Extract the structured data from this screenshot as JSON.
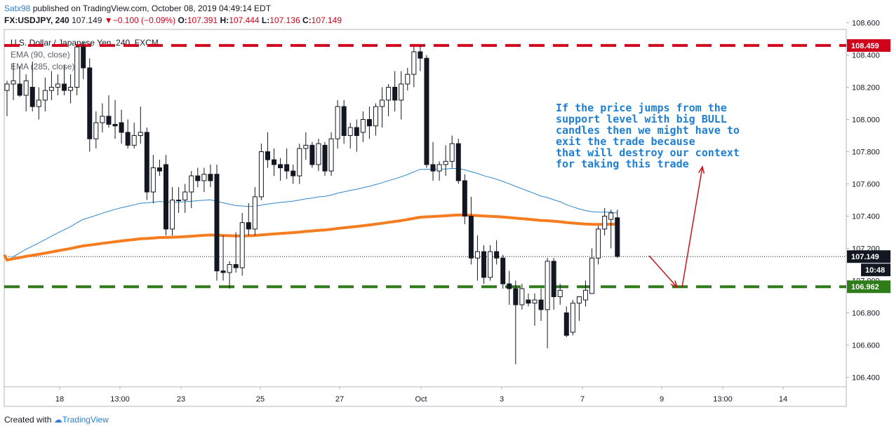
{
  "header": {
    "author": "Satx98",
    "published_text": "published on TradingView.com, October 08, 2019 04:49:14 EDT",
    "symbol": "FX:USDJPY, 240",
    "last": "107.149",
    "change_arrow": "▼",
    "change": "−0.100 (−0.09%)",
    "o_label": "O:",
    "o_value": "107.391",
    "h_label": "H:",
    "h_value": "107.444",
    "l_label": "L:",
    "l_value": "107.136",
    "c_label": "C:",
    "c_value": "107.149"
  },
  "footer": {
    "created_with": "Created with",
    "brand": "TradingView"
  },
  "colors": {
    "bull_fill": "#ffffff",
    "bear_fill": "#131722",
    "candle_line": "#131722",
    "ema90": "#2e86c8",
    "ema285": "#f57c1f",
    "resistance": "#d0021b",
    "support": "#2e7d1a",
    "annotation_text": "#1e7fd0",
    "arrow": "#c4161c"
  },
  "chart_data": {
    "type": "candlestick",
    "title": "U.S. Dollar / Japanese Yen, 240, FXCM",
    "indicators": [
      "EMA (90, close)",
      "EMA (285, close)"
    ],
    "ylim": [
      106.3,
      108.7
    ],
    "y_ticks": [
      "108.600",
      "108.400",
      "108.200",
      "108.000",
      "107.800",
      "107.600",
      "107.400",
      "107.200",
      "107.000",
      "106.800",
      "106.600",
      "106.400"
    ],
    "x_ticks": [
      "18",
      "13:00",
      "23",
      "25",
      "27",
      "Oct",
      "3",
      "7",
      "9",
      "13:00",
      "14"
    ],
    "horizontal_levels": [
      {
        "label": "108.459",
        "price": 108.459,
        "style": "dashed",
        "color": "#d0021b"
      },
      {
        "label": "106.962",
        "price": 106.962,
        "style": "dashed",
        "color": "#2e7d1a"
      }
    ],
    "last_price": {
      "label": "107.149",
      "price": 107.149,
      "countdown": "10:48"
    },
    "candles": [
      [
        108.18,
        108.24,
        108.02,
        108.22
      ],
      [
        108.22,
        108.35,
        108.12,
        108.24
      ],
      [
        108.22,
        108.33,
        108.14,
        108.15
      ],
      [
        108.15,
        108.28,
        108.05,
        108.24
      ],
      [
        108.2,
        108.36,
        108.05,
        108.08
      ],
      [
        108.08,
        108.2,
        108.0,
        108.12
      ],
      [
        108.12,
        108.26,
        108.05,
        108.18
      ],
      [
        108.18,
        108.3,
        108.12,
        108.2
      ],
      [
        108.2,
        108.28,
        108.15,
        108.22
      ],
      [
        108.22,
        108.34,
        108.15,
        108.18
      ],
      [
        108.18,
        108.28,
        108.1,
        108.2
      ],
      [
        108.2,
        108.46,
        108.15,
        108.45
      ],
      [
        108.45,
        108.48,
        108.25,
        108.32
      ],
      [
        108.32,
        108.38,
        107.8,
        107.88
      ],
      [
        107.88,
        108.05,
        107.82,
        107.98
      ],
      [
        107.98,
        108.1,
        107.92,
        108.02
      ],
      [
        108.02,
        108.15,
        107.95,
        107.97
      ],
      [
        107.97,
        108.12,
        107.88,
        107.96
      ],
      [
        107.98,
        108.06,
        107.85,
        107.92
      ],
      [
        107.92,
        108.0,
        107.82,
        107.84
      ],
      [
        107.84,
        107.98,
        107.82,
        107.9
      ],
      [
        107.9,
        108.08,
        107.85,
        107.92
      ],
      [
        107.92,
        107.95,
        107.5,
        107.55
      ],
      [
        107.55,
        107.78,
        107.48,
        107.7
      ],
      [
        107.7,
        107.75,
        107.65,
        107.68
      ],
      [
        107.72,
        107.78,
        107.28,
        107.32
      ],
      [
        107.32,
        107.58,
        107.28,
        107.5
      ],
      [
        107.5,
        107.58,
        107.42,
        107.5
      ],
      [
        107.5,
        107.6,
        107.42,
        107.55
      ],
      [
        107.55,
        107.68,
        107.45,
        107.65
      ],
      [
        107.65,
        107.7,
        107.58,
        107.62
      ],
      [
        107.62,
        107.7,
        107.55,
        107.66
      ],
      [
        107.66,
        107.72,
        107.58,
        107.62
      ],
      [
        107.66,
        107.72,
        107.0,
        107.06
      ],
      [
        107.06,
        107.28,
        107.0,
        107.05
      ],
      [
        107.05,
        107.12,
        106.95,
        107.1
      ],
      [
        107.1,
        107.3,
        107.05,
        107.08
      ],
      [
        107.08,
        107.42,
        107.03,
        107.36
      ],
      [
        107.36,
        107.48,
        107.28,
        107.32
      ],
      [
        107.32,
        107.58,
        107.28,
        107.52
      ],
      [
        107.52,
        107.85,
        107.5,
        107.8
      ],
      [
        107.8,
        107.92,
        107.7,
        107.75
      ],
      [
        107.75,
        107.82,
        107.65,
        107.72
      ],
      [
        107.72,
        107.76,
        107.62,
        107.7
      ],
      [
        107.72,
        107.82,
        107.63,
        107.68
      ],
      [
        107.68,
        107.72,
        107.6,
        107.65
      ],
      [
        107.65,
        107.85,
        107.6,
        107.82
      ],
      [
        107.82,
        107.92,
        107.75,
        107.84
      ],
      [
        107.84,
        107.86,
        107.7,
        107.72
      ],
      [
        107.72,
        107.88,
        107.68,
        107.85
      ],
      [
        107.84,
        107.86,
        107.65,
        107.68
      ],
      [
        107.68,
        107.92,
        107.65,
        107.88
      ],
      [
        107.88,
        108.12,
        107.82,
        108.08
      ],
      [
        108.08,
        108.12,
        107.85,
        107.9
      ],
      [
        107.9,
        107.98,
        107.82,
        107.95
      ],
      [
        107.95,
        108.0,
        107.8,
        107.9
      ],
      [
        107.92,
        108.05,
        107.86,
        108.0
      ],
      [
        108.0,
        108.08,
        107.88,
        107.96
      ],
      [
        107.96,
        108.1,
        107.9,
        108.08
      ],
      [
        108.08,
        108.2,
        107.95,
        108.12
      ],
      [
        108.12,
        108.22,
        108.02,
        108.2
      ],
      [
        108.2,
        108.3,
        108.05,
        108.12
      ],
      [
        108.12,
        108.3,
        108.0,
        108.22
      ],
      [
        108.22,
        108.32,
        108.18,
        108.28
      ],
      [
        108.28,
        108.45,
        108.2,
        108.42
      ],
      [
        108.42,
        108.46,
        108.3,
        108.38
      ],
      [
        108.38,
        108.4,
        107.7,
        107.72
      ],
      [
        107.72,
        107.86,
        107.62,
        107.68
      ],
      [
        107.68,
        107.74,
        107.62,
        107.72
      ],
      [
        107.72,
        107.84,
        107.65,
        107.74
      ],
      [
        107.74,
        107.9,
        107.7,
        107.85
      ],
      [
        107.85,
        107.88,
        107.6,
        107.62
      ],
      [
        107.62,
        107.66,
        107.35,
        107.4
      ],
      [
        107.4,
        107.52,
        107.1,
        107.14
      ],
      [
        107.14,
        107.28,
        107.0,
        107.18
      ],
      [
        107.18,
        107.22,
        106.98,
        107.02
      ],
      [
        107.02,
        107.22,
        107.0,
        107.18
      ],
      [
        107.18,
        107.25,
        107.1,
        107.14
      ],
      [
        107.14,
        107.16,
        106.95,
        106.98
      ],
      [
        106.98,
        107.06,
        106.85,
        106.95
      ],
      [
        106.95,
        107.0,
        106.48,
        106.85
      ],
      [
        106.85,
        106.98,
        106.82,
        106.95
      ],
      [
        106.88,
        106.92,
        106.84,
        106.86
      ],
      [
        106.86,
        106.92,
        106.72,
        106.88
      ],
      [
        106.88,
        106.95,
        106.75,
        106.82
      ],
      [
        106.82,
        107.14,
        106.58,
        107.12
      ],
      [
        107.12,
        107.14,
        106.82,
        106.9
      ],
      [
        106.9,
        106.98,
        106.85,
        106.94
      ],
      [
        106.8,
        106.84,
        106.65,
        106.66
      ],
      [
        106.68,
        106.88,
        106.66,
        106.86
      ],
      [
        106.86,
        106.9,
        106.75,
        106.9
      ],
      [
        106.88,
        107.0,
        106.84,
        106.94
      ],
      [
        106.92,
        107.2,
        106.92,
        107.14
      ],
      [
        107.14,
        107.34,
        107.1,
        107.32
      ],
      [
        107.32,
        107.45,
        107.28,
        107.4
      ],
      [
        107.38,
        107.44,
        107.2,
        107.42
      ],
      [
        107.39,
        107.44,
        107.14,
        107.15
      ]
    ],
    "annotation_lines": [
      "If the price jumps from the",
      "support level with big BULL",
      "candles then we might have to",
      "exit the trade because",
      "that will destroy our context",
      "for taking this trade"
    ]
  }
}
